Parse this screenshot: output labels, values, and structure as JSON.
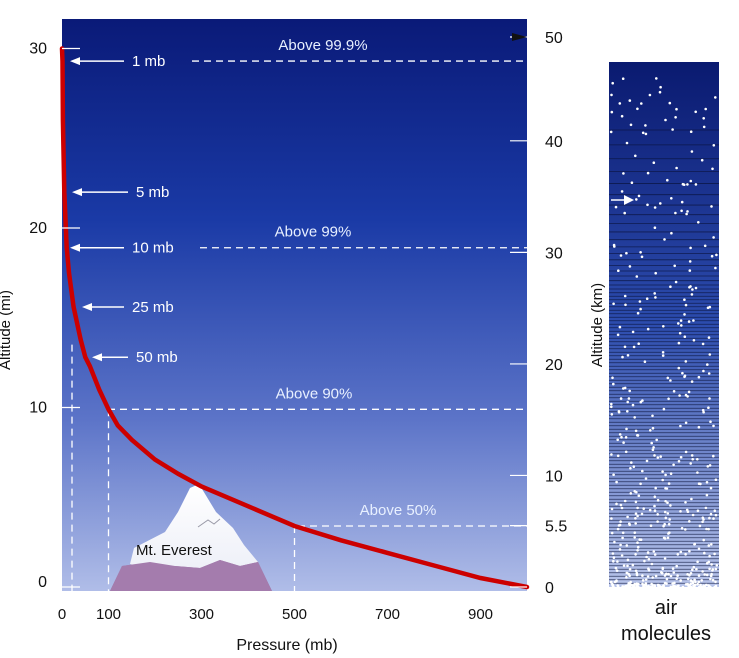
{
  "main_chart": {
    "xlabel": "Pressure (mb)",
    "ylabel": "Altitude (mi)",
    "right_axis_label": "",
    "x_ticks": [
      {
        "label": "0",
        "value": 0
      },
      {
        "label": "100",
        "value": 100
      },
      {
        "label": "300",
        "value": 300
      },
      {
        "label": "500",
        "value": 500
      },
      {
        "label": "700",
        "value": 700
      },
      {
        "label": "900",
        "value": 900
      }
    ],
    "y_ticks_mi": [
      {
        "label": "0",
        "value": 0
      },
      {
        "label": "10",
        "value": 10
      },
      {
        "label": "20",
        "value": 20
      },
      {
        "label": "30",
        "value": 30
      }
    ],
    "y_ticks_km": [
      {
        "label": "0",
        "value": 0
      },
      {
        "label": "5.5",
        "value": 5.5
      },
      {
        "label": "10",
        "value": 10
      },
      {
        "label": "20",
        "value": 20
      },
      {
        "label": "30",
        "value": 30
      },
      {
        "label": "40",
        "value": 40
      },
      {
        "label": "50",
        "value": 50
      }
    ],
    "pressure_labels": [
      {
        "label": "1 mb",
        "pressure_mb": 1,
        "altitude_mi": 29.3
      },
      {
        "label": "5 mb",
        "pressure_mb": 5,
        "altitude_mi": 22.0
      },
      {
        "label": "10 mb",
        "pressure_mb": 10,
        "altitude_mi": 18.9
      },
      {
        "label": "25 mb",
        "pressure_mb": 25,
        "altitude_mi": 15.6
      },
      {
        "label": "50 mb",
        "pressure_mb": 50,
        "altitude_mi": 12.8
      }
    ],
    "percent_lines": [
      {
        "label": "Above 99.9%",
        "altitude_mi": 29.3,
        "pressure_mb": 1
      },
      {
        "label": "Above 99%",
        "altitude_mi": 18.9,
        "pressure_mb": 10
      },
      {
        "label": "Above 90%",
        "altitude_mi": 9.9,
        "pressure_mb": 100
      },
      {
        "label": "Above 50%",
        "altitude_mi": 3.4,
        "pressure_mb": 500
      }
    ],
    "mountain_label": "Mt. Everest",
    "curve": [
      [
        1000,
        0
      ],
      [
        900,
        0.5
      ],
      [
        800,
        1.2
      ],
      [
        700,
        1.9
      ],
      [
        600,
        2.6
      ],
      [
        500,
        3.4
      ],
      [
        400,
        4.5
      ],
      [
        300,
        5.6
      ],
      [
        250,
        6.3
      ],
      [
        200,
        7.1
      ],
      [
        150,
        8.2
      ],
      [
        120,
        9.0
      ],
      [
        100,
        9.9
      ],
      [
        80,
        11.0
      ],
      [
        60,
        12.3
      ],
      [
        50,
        12.8
      ],
      [
        40,
        13.8
      ],
      [
        25,
        15.6
      ],
      [
        15,
        17.5
      ],
      [
        10,
        18.9
      ],
      [
        5,
        22.0
      ],
      [
        2,
        26.0
      ],
      [
        1,
        29.3
      ],
      [
        0,
        30
      ]
    ],
    "colors": {
      "sky_top": "#0c1c78",
      "sky_bottom": "#a6b6e8",
      "curve": "#cc0000"
    }
  },
  "column": {
    "ylabel": "Altitude (km)",
    "caption_line1": "air",
    "caption_line2": "molecules"
  }
}
